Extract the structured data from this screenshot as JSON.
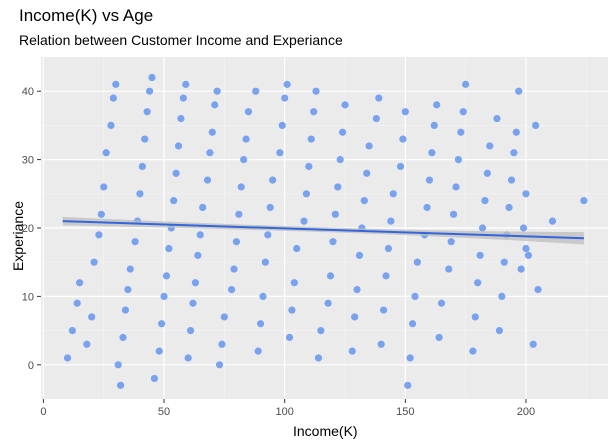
{
  "chart_data": {
    "type": "scatter",
    "title": "Income(K) vs Age",
    "subtitle": "Relation between Customer Income and Experiance",
    "xlabel": "Income(K)",
    "ylabel": "Experiance",
    "xlim": [
      -1,
      234
    ],
    "ylim": [
      -5,
      45
    ],
    "x_ticks": [
      0,
      50,
      100,
      150,
      200
    ],
    "y_ticks": [
      0,
      10,
      20,
      30,
      40
    ],
    "grid": true,
    "point_color": "#6495ED",
    "trend": {
      "method": "linear smooth",
      "x": [
        8,
        224
      ],
      "y": [
        21,
        18.5
      ],
      "ci_halfwidth": [
        0.35,
        0.9
      ],
      "color": "#3366DD",
      "band_color": "#BDBDBD"
    },
    "points": [
      [
        10,
        1
      ],
      [
        12,
        5
      ],
      [
        14,
        9
      ],
      [
        15,
        12
      ],
      [
        18,
        3
      ],
      [
        20,
        7
      ],
      [
        21,
        15
      ],
      [
        23,
        19
      ],
      [
        24,
        22
      ],
      [
        25,
        26
      ],
      [
        26,
        31
      ],
      [
        28,
        35
      ],
      [
        29,
        39
      ],
      [
        30,
        41
      ],
      [
        31,
        0
      ],
      [
        32,
        -3
      ],
      [
        33,
        4
      ],
      [
        34,
        8
      ],
      [
        35,
        11
      ],
      [
        36,
        14
      ],
      [
        38,
        18
      ],
      [
        39,
        21
      ],
      [
        40,
        25
      ],
      [
        41,
        29
      ],
      [
        42,
        33
      ],
      [
        43,
        37
      ],
      [
        44,
        40
      ],
      [
        45,
        42
      ],
      [
        46,
        -2
      ],
      [
        48,
        2
      ],
      [
        49,
        6
      ],
      [
        50,
        10
      ],
      [
        51,
        13
      ],
      [
        52,
        17
      ],
      [
        53,
        20
      ],
      [
        54,
        24
      ],
      [
        55,
        28
      ],
      [
        56,
        32
      ],
      [
        57,
        36
      ],
      [
        58,
        39
      ],
      [
        59,
        41
      ],
      [
        60,
        1
      ],
      [
        61,
        5
      ],
      [
        62,
        9
      ],
      [
        63,
        12
      ],
      [
        64,
        16
      ],
      [
        65,
        19
      ],
      [
        66,
        23
      ],
      [
        68,
        27
      ],
      [
        69,
        31
      ],
      [
        70,
        34
      ],
      [
        71,
        38
      ],
      [
        72,
        40
      ],
      [
        73,
        0
      ],
      [
        74,
        3
      ],
      [
        75,
        7
      ],
      [
        78,
        11
      ],
      [
        79,
        14
      ],
      [
        80,
        18
      ],
      [
        81,
        22
      ],
      [
        82,
        26
      ],
      [
        83,
        30
      ],
      [
        84,
        33
      ],
      [
        85,
        37
      ],
      [
        88,
        40
      ],
      [
        89,
        2
      ],
      [
        90,
        6
      ],
      [
        91,
        10
      ],
      [
        92,
        15
      ],
      [
        93,
        19
      ],
      [
        94,
        23
      ],
      [
        95,
        27
      ],
      [
        98,
        31
      ],
      [
        99,
        35
      ],
      [
        100,
        39
      ],
      [
        101,
        41
      ],
      [
        102,
        4
      ],
      [
        103,
        8
      ],
      [
        104,
        12
      ],
      [
        105,
        17
      ],
      [
        108,
        21
      ],
      [
        109,
        25
      ],
      [
        110,
        29
      ],
      [
        111,
        33
      ],
      [
        112,
        37
      ],
      [
        113,
        40
      ],
      [
        114,
        1
      ],
      [
        115,
        5
      ],
      [
        118,
        9
      ],
      [
        119,
        13
      ],
      [
        120,
        18
      ],
      [
        121,
        22
      ],
      [
        122,
        26
      ],
      [
        123,
        30
      ],
      [
        124,
        34
      ],
      [
        125,
        38
      ],
      [
        128,
        2
      ],
      [
        129,
        7
      ],
      [
        130,
        11
      ],
      [
        131,
        16
      ],
      [
        132,
        20
      ],
      [
        133,
        24
      ],
      [
        134,
        28
      ],
      [
        135,
        32
      ],
      [
        138,
        36
      ],
      [
        139,
        39
      ],
      [
        140,
        3
      ],
      [
        141,
        8
      ],
      [
        142,
        13
      ],
      [
        143,
        17
      ],
      [
        144,
        21
      ],
      [
        145,
        25
      ],
      [
        148,
        29
      ],
      [
        149,
        33
      ],
      [
        150,
        37
      ],
      [
        151,
        -3
      ],
      [
        152,
        1
      ],
      [
        153,
        6
      ],
      [
        154,
        10
      ],
      [
        155,
        15
      ],
      [
        158,
        19
      ],
      [
        159,
        23
      ],
      [
        160,
        27
      ],
      [
        161,
        31
      ],
      [
        162,
        35
      ],
      [
        163,
        38
      ],
      [
        164,
        4
      ],
      [
        165,
        9
      ],
      [
        168,
        14
      ],
      [
        169,
        18
      ],
      [
        170,
        22
      ],
      [
        171,
        26
      ],
      [
        172,
        30
      ],
      [
        173,
        34
      ],
      [
        174,
        37
      ],
      [
        175,
        41
      ],
      [
        178,
        2
      ],
      [
        179,
        7
      ],
      [
        180,
        12
      ],
      [
        181,
        16
      ],
      [
        182,
        20
      ],
      [
        183,
        24
      ],
      [
        184,
        28
      ],
      [
        185,
        32
      ],
      [
        188,
        36
      ],
      [
        189,
        5
      ],
      [
        190,
        10
      ],
      [
        191,
        15
      ],
      [
        192,
        19
      ],
      [
        193,
        23
      ],
      [
        194,
        27
      ],
      [
        195,
        31
      ],
      [
        196,
        34
      ],
      [
        198,
        14
      ],
      [
        199,
        20
      ],
      [
        200,
        25
      ],
      [
        201,
        16
      ],
      [
        203,
        3
      ],
      [
        204,
        35
      ],
      [
        205,
        11
      ],
      [
        211,
        21
      ],
      [
        224,
        24
      ],
      [
        200,
        17
      ],
      [
        197,
        40
      ]
    ]
  }
}
